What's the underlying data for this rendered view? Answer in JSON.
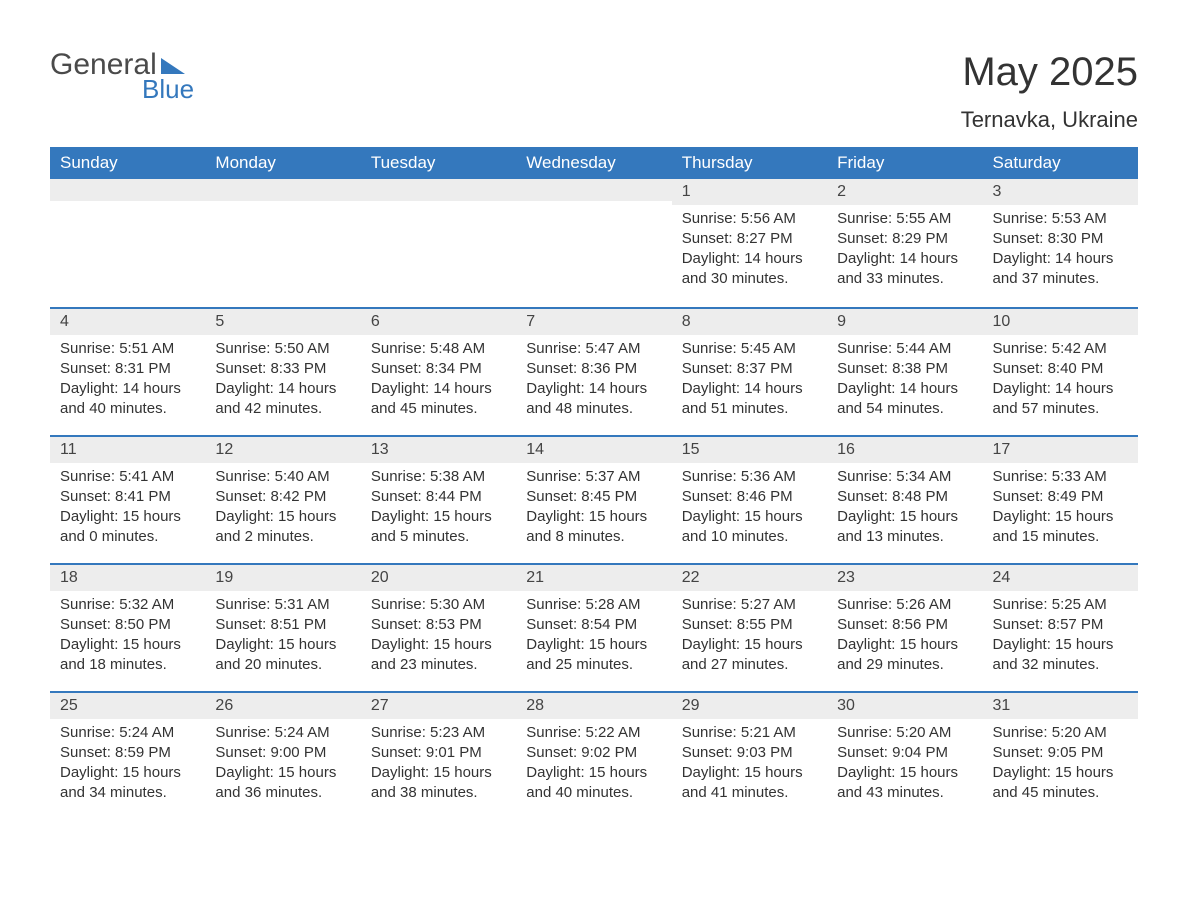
{
  "logo": {
    "text_main": "General",
    "text_sub": "Blue"
  },
  "title": "May 2025",
  "location": "Ternavka, Ukraine",
  "colors": {
    "header_bg": "#3478bd",
    "header_text": "#ffffff",
    "daynum_bg": "#ededed",
    "text": "#333333",
    "rule": "#3478bd",
    "page_bg": "#ffffff"
  },
  "weekdays": [
    "Sunday",
    "Monday",
    "Tuesday",
    "Wednesday",
    "Thursday",
    "Friday",
    "Saturday"
  ],
  "weeks": [
    [
      {
        "n": "",
        "sunrise": "",
        "sunset": "",
        "daylight": ""
      },
      {
        "n": "",
        "sunrise": "",
        "sunset": "",
        "daylight": ""
      },
      {
        "n": "",
        "sunrise": "",
        "sunset": "",
        "daylight": ""
      },
      {
        "n": "",
        "sunrise": "",
        "sunset": "",
        "daylight": ""
      },
      {
        "n": "1",
        "sunrise": "Sunrise: 5:56 AM",
        "sunset": "Sunset: 8:27 PM",
        "daylight": "Daylight: 14 hours and 30 minutes."
      },
      {
        "n": "2",
        "sunrise": "Sunrise: 5:55 AM",
        "sunset": "Sunset: 8:29 PM",
        "daylight": "Daylight: 14 hours and 33 minutes."
      },
      {
        "n": "3",
        "sunrise": "Sunrise: 5:53 AM",
        "sunset": "Sunset: 8:30 PM",
        "daylight": "Daylight: 14 hours and 37 minutes."
      }
    ],
    [
      {
        "n": "4",
        "sunrise": "Sunrise: 5:51 AM",
        "sunset": "Sunset: 8:31 PM",
        "daylight": "Daylight: 14 hours and 40 minutes."
      },
      {
        "n": "5",
        "sunrise": "Sunrise: 5:50 AM",
        "sunset": "Sunset: 8:33 PM",
        "daylight": "Daylight: 14 hours and 42 minutes."
      },
      {
        "n": "6",
        "sunrise": "Sunrise: 5:48 AM",
        "sunset": "Sunset: 8:34 PM",
        "daylight": "Daylight: 14 hours and 45 minutes."
      },
      {
        "n": "7",
        "sunrise": "Sunrise: 5:47 AM",
        "sunset": "Sunset: 8:36 PM",
        "daylight": "Daylight: 14 hours and 48 minutes."
      },
      {
        "n": "8",
        "sunrise": "Sunrise: 5:45 AM",
        "sunset": "Sunset: 8:37 PM",
        "daylight": "Daylight: 14 hours and 51 minutes."
      },
      {
        "n": "9",
        "sunrise": "Sunrise: 5:44 AM",
        "sunset": "Sunset: 8:38 PM",
        "daylight": "Daylight: 14 hours and 54 minutes."
      },
      {
        "n": "10",
        "sunrise": "Sunrise: 5:42 AM",
        "sunset": "Sunset: 8:40 PM",
        "daylight": "Daylight: 14 hours and 57 minutes."
      }
    ],
    [
      {
        "n": "11",
        "sunrise": "Sunrise: 5:41 AM",
        "sunset": "Sunset: 8:41 PM",
        "daylight": "Daylight: 15 hours and 0 minutes."
      },
      {
        "n": "12",
        "sunrise": "Sunrise: 5:40 AM",
        "sunset": "Sunset: 8:42 PM",
        "daylight": "Daylight: 15 hours and 2 minutes."
      },
      {
        "n": "13",
        "sunrise": "Sunrise: 5:38 AM",
        "sunset": "Sunset: 8:44 PM",
        "daylight": "Daylight: 15 hours and 5 minutes."
      },
      {
        "n": "14",
        "sunrise": "Sunrise: 5:37 AM",
        "sunset": "Sunset: 8:45 PM",
        "daylight": "Daylight: 15 hours and 8 minutes."
      },
      {
        "n": "15",
        "sunrise": "Sunrise: 5:36 AM",
        "sunset": "Sunset: 8:46 PM",
        "daylight": "Daylight: 15 hours and 10 minutes."
      },
      {
        "n": "16",
        "sunrise": "Sunrise: 5:34 AM",
        "sunset": "Sunset: 8:48 PM",
        "daylight": "Daylight: 15 hours and 13 minutes."
      },
      {
        "n": "17",
        "sunrise": "Sunrise: 5:33 AM",
        "sunset": "Sunset: 8:49 PM",
        "daylight": "Daylight: 15 hours and 15 minutes."
      }
    ],
    [
      {
        "n": "18",
        "sunrise": "Sunrise: 5:32 AM",
        "sunset": "Sunset: 8:50 PM",
        "daylight": "Daylight: 15 hours and 18 minutes."
      },
      {
        "n": "19",
        "sunrise": "Sunrise: 5:31 AM",
        "sunset": "Sunset: 8:51 PM",
        "daylight": "Daylight: 15 hours and 20 minutes."
      },
      {
        "n": "20",
        "sunrise": "Sunrise: 5:30 AM",
        "sunset": "Sunset: 8:53 PM",
        "daylight": "Daylight: 15 hours and 23 minutes."
      },
      {
        "n": "21",
        "sunrise": "Sunrise: 5:28 AM",
        "sunset": "Sunset: 8:54 PM",
        "daylight": "Daylight: 15 hours and 25 minutes."
      },
      {
        "n": "22",
        "sunrise": "Sunrise: 5:27 AM",
        "sunset": "Sunset: 8:55 PM",
        "daylight": "Daylight: 15 hours and 27 minutes."
      },
      {
        "n": "23",
        "sunrise": "Sunrise: 5:26 AM",
        "sunset": "Sunset: 8:56 PM",
        "daylight": "Daylight: 15 hours and 29 minutes."
      },
      {
        "n": "24",
        "sunrise": "Sunrise: 5:25 AM",
        "sunset": "Sunset: 8:57 PM",
        "daylight": "Daylight: 15 hours and 32 minutes."
      }
    ],
    [
      {
        "n": "25",
        "sunrise": "Sunrise: 5:24 AM",
        "sunset": "Sunset: 8:59 PM",
        "daylight": "Daylight: 15 hours and 34 minutes."
      },
      {
        "n": "26",
        "sunrise": "Sunrise: 5:24 AM",
        "sunset": "Sunset: 9:00 PM",
        "daylight": "Daylight: 15 hours and 36 minutes."
      },
      {
        "n": "27",
        "sunrise": "Sunrise: 5:23 AM",
        "sunset": "Sunset: 9:01 PM",
        "daylight": "Daylight: 15 hours and 38 minutes."
      },
      {
        "n": "28",
        "sunrise": "Sunrise: 5:22 AM",
        "sunset": "Sunset: 9:02 PM",
        "daylight": "Daylight: 15 hours and 40 minutes."
      },
      {
        "n": "29",
        "sunrise": "Sunrise: 5:21 AM",
        "sunset": "Sunset: 9:03 PM",
        "daylight": "Daylight: 15 hours and 41 minutes."
      },
      {
        "n": "30",
        "sunrise": "Sunrise: 5:20 AM",
        "sunset": "Sunset: 9:04 PM",
        "daylight": "Daylight: 15 hours and 43 minutes."
      },
      {
        "n": "31",
        "sunrise": "Sunrise: 5:20 AM",
        "sunset": "Sunset: 9:05 PM",
        "daylight": "Daylight: 15 hours and 45 minutes."
      }
    ]
  ]
}
